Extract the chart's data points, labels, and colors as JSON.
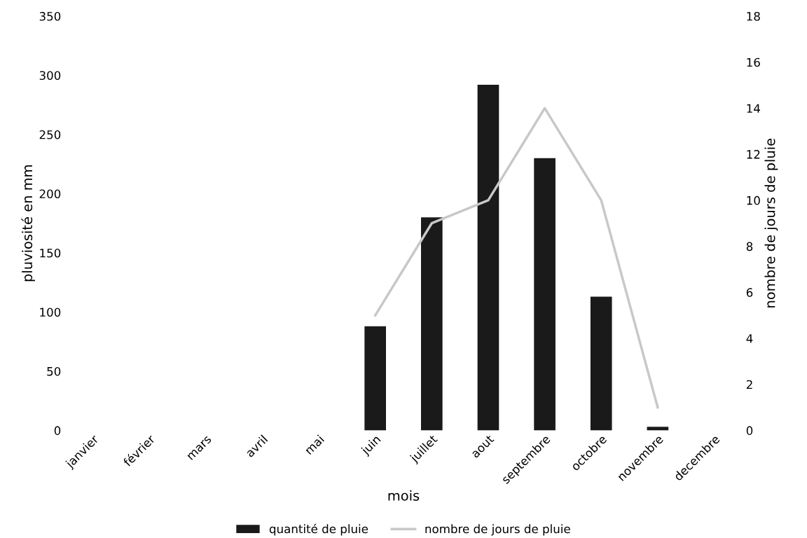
{
  "chart_data": {
    "type": "bar",
    "xlabel": "mois",
    "ylabel": "pluviosité en mm",
    "y2label": "nombre de jours de pluie",
    "categories": [
      "janvier",
      "février",
      "mars",
      "avril",
      "mai",
      "juin",
      "juillet",
      "aout",
      "septembre",
      "octobre",
      "novembre",
      "decembre"
    ],
    "series": [
      {
        "name": "quantité de pluie",
        "color": "#1a1a1a",
        "values": [
          0,
          0,
          0,
          0,
          0,
          88,
          180,
          292,
          230,
          113,
          3,
          0
        ]
      },
      {
        "name": "nombre de jours de pluie",
        "type": "line",
        "axis": "y2",
        "color": "#c8c8c8",
        "values": [
          null,
          null,
          null,
          null,
          null,
          5,
          9,
          10,
          14,
          10,
          1,
          null
        ]
      }
    ],
    "ylim": [
      0,
      350
    ],
    "yticks": [
      0,
      50,
      100,
      150,
      200,
      250,
      300,
      350
    ],
    "y2lim": [
      0,
      18
    ],
    "y2ticks": [
      0,
      2,
      4,
      6,
      8,
      10,
      12,
      14,
      16,
      18
    ],
    "grid": false,
    "legend": "bottom",
    "marker": "none",
    "line_style": "solid"
  }
}
